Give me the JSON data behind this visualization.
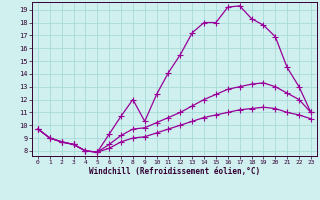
{
  "xlabel": "Windchill (Refroidissement éolien,°C)",
  "bg_color": "#cff0ee",
  "grid_color": "#a8dbd8",
  "line_color": "#990099",
  "xlim": [
    -0.5,
    23.5
  ],
  "ylim": [
    7.6,
    19.6
  ],
  "xticks": [
    0,
    1,
    2,
    3,
    4,
    5,
    6,
    7,
    8,
    9,
    10,
    11,
    12,
    13,
    14,
    15,
    16,
    17,
    18,
    19,
    20,
    21,
    22,
    23
  ],
  "yticks": [
    8,
    9,
    10,
    11,
    12,
    13,
    14,
    15,
    16,
    17,
    18,
    19
  ],
  "line1_x": [
    0,
    1,
    2,
    3,
    4,
    5,
    6,
    7,
    8,
    9,
    10,
    11,
    12,
    13,
    14,
    15,
    16,
    17,
    18,
    19,
    20,
    21,
    22,
    23
  ],
  "line1_y": [
    9.7,
    9.0,
    8.7,
    8.5,
    8.0,
    7.9,
    9.3,
    10.7,
    12.0,
    10.3,
    12.4,
    14.1,
    15.5,
    17.2,
    18.0,
    18.0,
    19.2,
    19.3,
    18.3,
    17.8,
    16.9,
    14.5,
    13.0,
    11.0
  ],
  "line2_x": [
    0,
    1,
    2,
    3,
    4,
    5,
    6,
    7,
    8,
    9,
    10,
    11,
    12,
    13,
    14,
    15,
    16,
    17,
    18,
    19,
    20,
    21,
    22,
    23
  ],
  "line2_y": [
    9.7,
    9.0,
    8.7,
    8.5,
    8.0,
    7.9,
    8.5,
    9.2,
    9.7,
    9.8,
    10.2,
    10.6,
    11.0,
    11.5,
    12.0,
    12.4,
    12.8,
    13.0,
    13.2,
    13.3,
    13.0,
    12.5,
    12.0,
    11.0
  ],
  "line3_x": [
    0,
    1,
    2,
    3,
    4,
    5,
    6,
    7,
    8,
    9,
    10,
    11,
    12,
    13,
    14,
    15,
    16,
    17,
    18,
    19,
    20,
    21,
    22,
    23
  ],
  "line3_y": [
    9.7,
    9.0,
    8.7,
    8.5,
    8.0,
    7.9,
    8.2,
    8.7,
    9.0,
    9.1,
    9.4,
    9.7,
    10.0,
    10.3,
    10.6,
    10.8,
    11.0,
    11.2,
    11.3,
    11.4,
    11.3,
    11.0,
    10.8,
    10.5
  ],
  "marker": "+",
  "markersize": 4,
  "linewidth": 0.9
}
